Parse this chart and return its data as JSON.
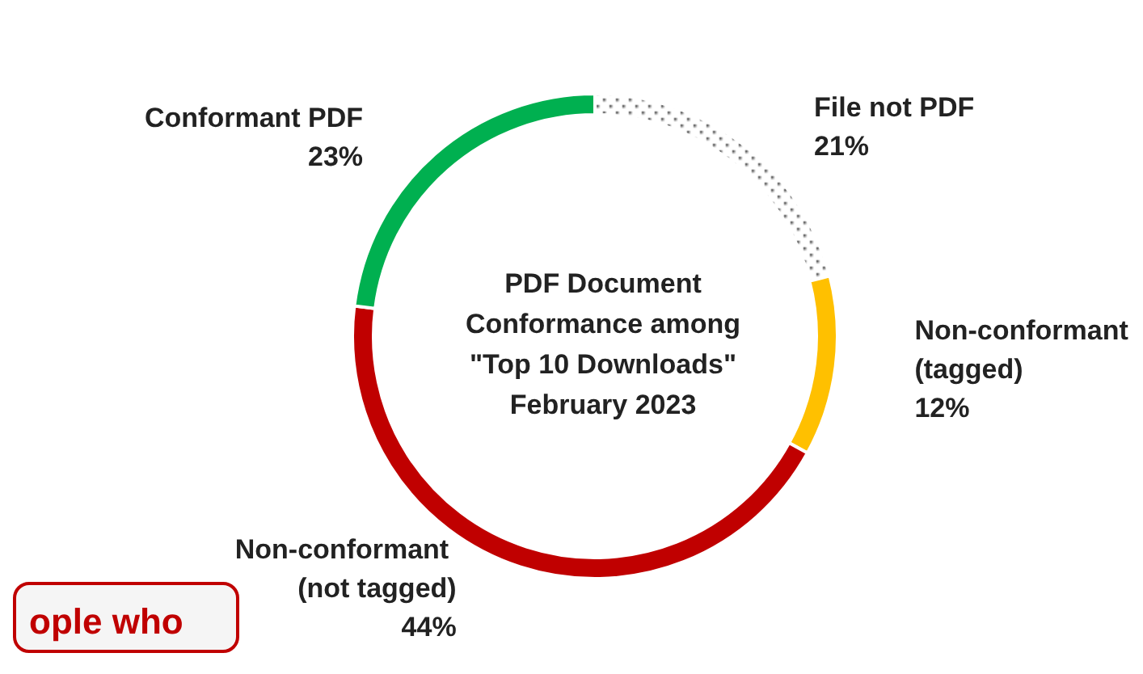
{
  "chart_data": {
    "type": "donut",
    "title": "PDF Document Conformance among \"Top 10 Downloads\" February 2023",
    "categories": [
      "File not PDF",
      "Non-conformant (tagged)",
      "Non-conformant (not tagged)",
      "Conformant PDF"
    ],
    "values": [
      21,
      12,
      44,
      23
    ],
    "colors": [
      "#ffffff",
      "#ffc000",
      "#c00000",
      "#00b050"
    ],
    "value_labels": [
      "21%",
      "12%",
      "44%",
      "23%"
    ],
    "legend": false,
    "annotations": [
      "ople who"
    ]
  }
}
